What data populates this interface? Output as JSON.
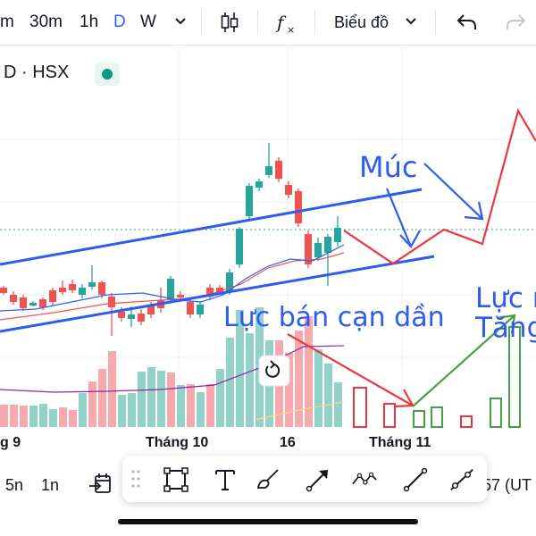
{
  "toolbar": {
    "partial_interval": "m",
    "intervals": [
      "30m",
      "1h",
      "D",
      "W"
    ],
    "active_interval": "D",
    "chart_type_label": "Biểu đồ"
  },
  "symbol": {
    "text": "D · HSX"
  },
  "x_axis": {
    "labels": [
      "g 9",
      "Tháng 10",
      "16",
      "Tháng 11"
    ]
  },
  "annotations": {
    "muc": "Múc",
    "luc_ban": "Lực bán cạn dần",
    "luc_mua_line1": "Lực m",
    "luc_mua_line2": "Tăng"
  },
  "bottom_bar": {
    "range_5n": "5n",
    "range_1n": "1n",
    "timezone_partial": "57 (UT"
  },
  "colors": {
    "up": "#26a69a",
    "down": "#ef5350",
    "up_volume": "#93d2c8",
    "down_volume": "#f7a9ad",
    "trend": "#2e5bf0",
    "annotation_red": "#e8383d",
    "annotation_green": "#43a047"
  },
  "icons": {
    "chevron": "chevron-down-icon",
    "candles": "candlestick-icon",
    "indicators": "fx-icon",
    "undo": "undo-icon",
    "redo": "redo-icon",
    "calendar": "calendar-arrow-icon",
    "drag": "drag-handle-icon",
    "rectangle": "rectangle-tool-icon",
    "text": "text-tool-icon",
    "brush": "brush-tool-icon",
    "arrow": "arrow-tool-icon",
    "path": "path-tool-icon",
    "line": "trend-line-tool-icon",
    "ray": "ray-tool-icon"
  }
}
